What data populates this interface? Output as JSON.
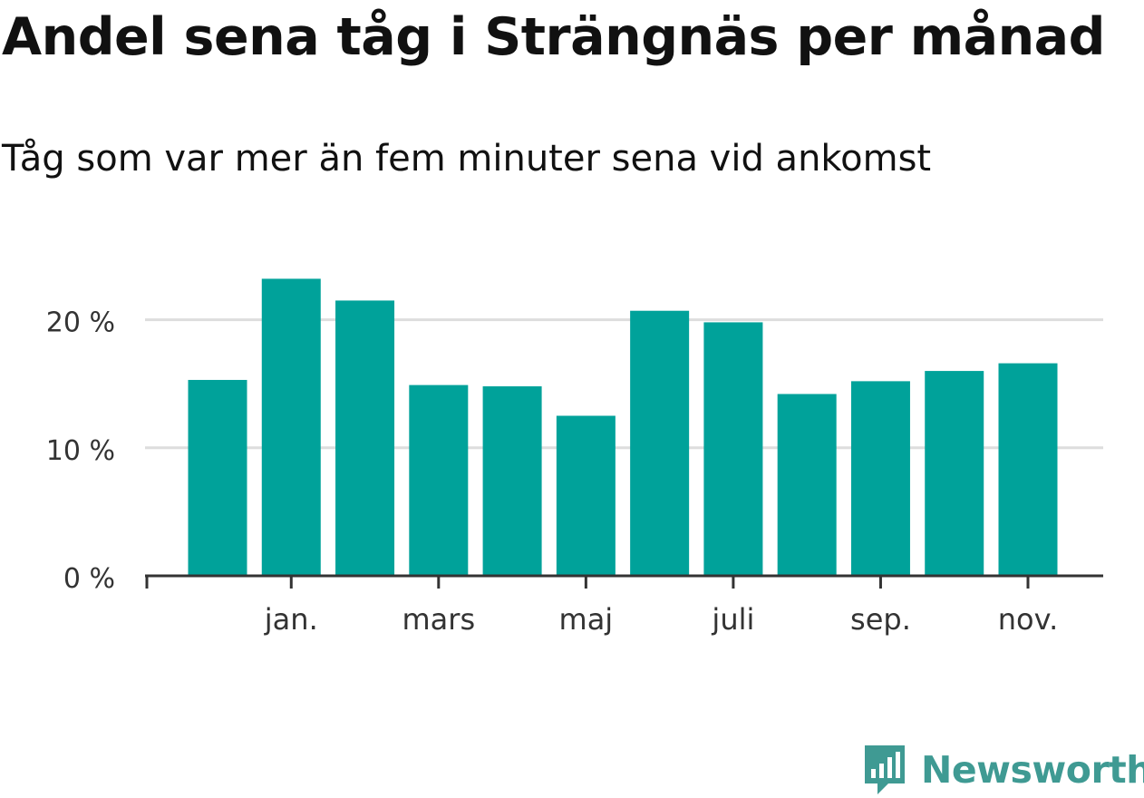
{
  "title": "Andel sena tåg i Strängnäs per månad",
  "subtitle": "Tåg som var mer än fem minuter sena vid ankomst",
  "brand": "Newsworthy",
  "chart_data": {
    "type": "bar",
    "values": [
      15.3,
      23.2,
      21.5,
      14.9,
      14.8,
      12.5,
      20.7,
      19.8,
      14.2,
      15.2,
      16.0,
      16.6
    ],
    "x_tick_labels": [
      "",
      "jan.",
      "",
      "mars",
      "",
      "maj",
      "",
      "juli",
      "",
      "sep.",
      "",
      "nov."
    ],
    "y_ticks": [
      0,
      10,
      20
    ],
    "y_tick_labels": [
      "0 %",
      "10 %",
      "20 %"
    ],
    "ylim": [
      0,
      25
    ],
    "grid": true,
    "bar_color": "#00a29a",
    "grid_color": "#dddddd",
    "axis_color": "#333333"
  }
}
